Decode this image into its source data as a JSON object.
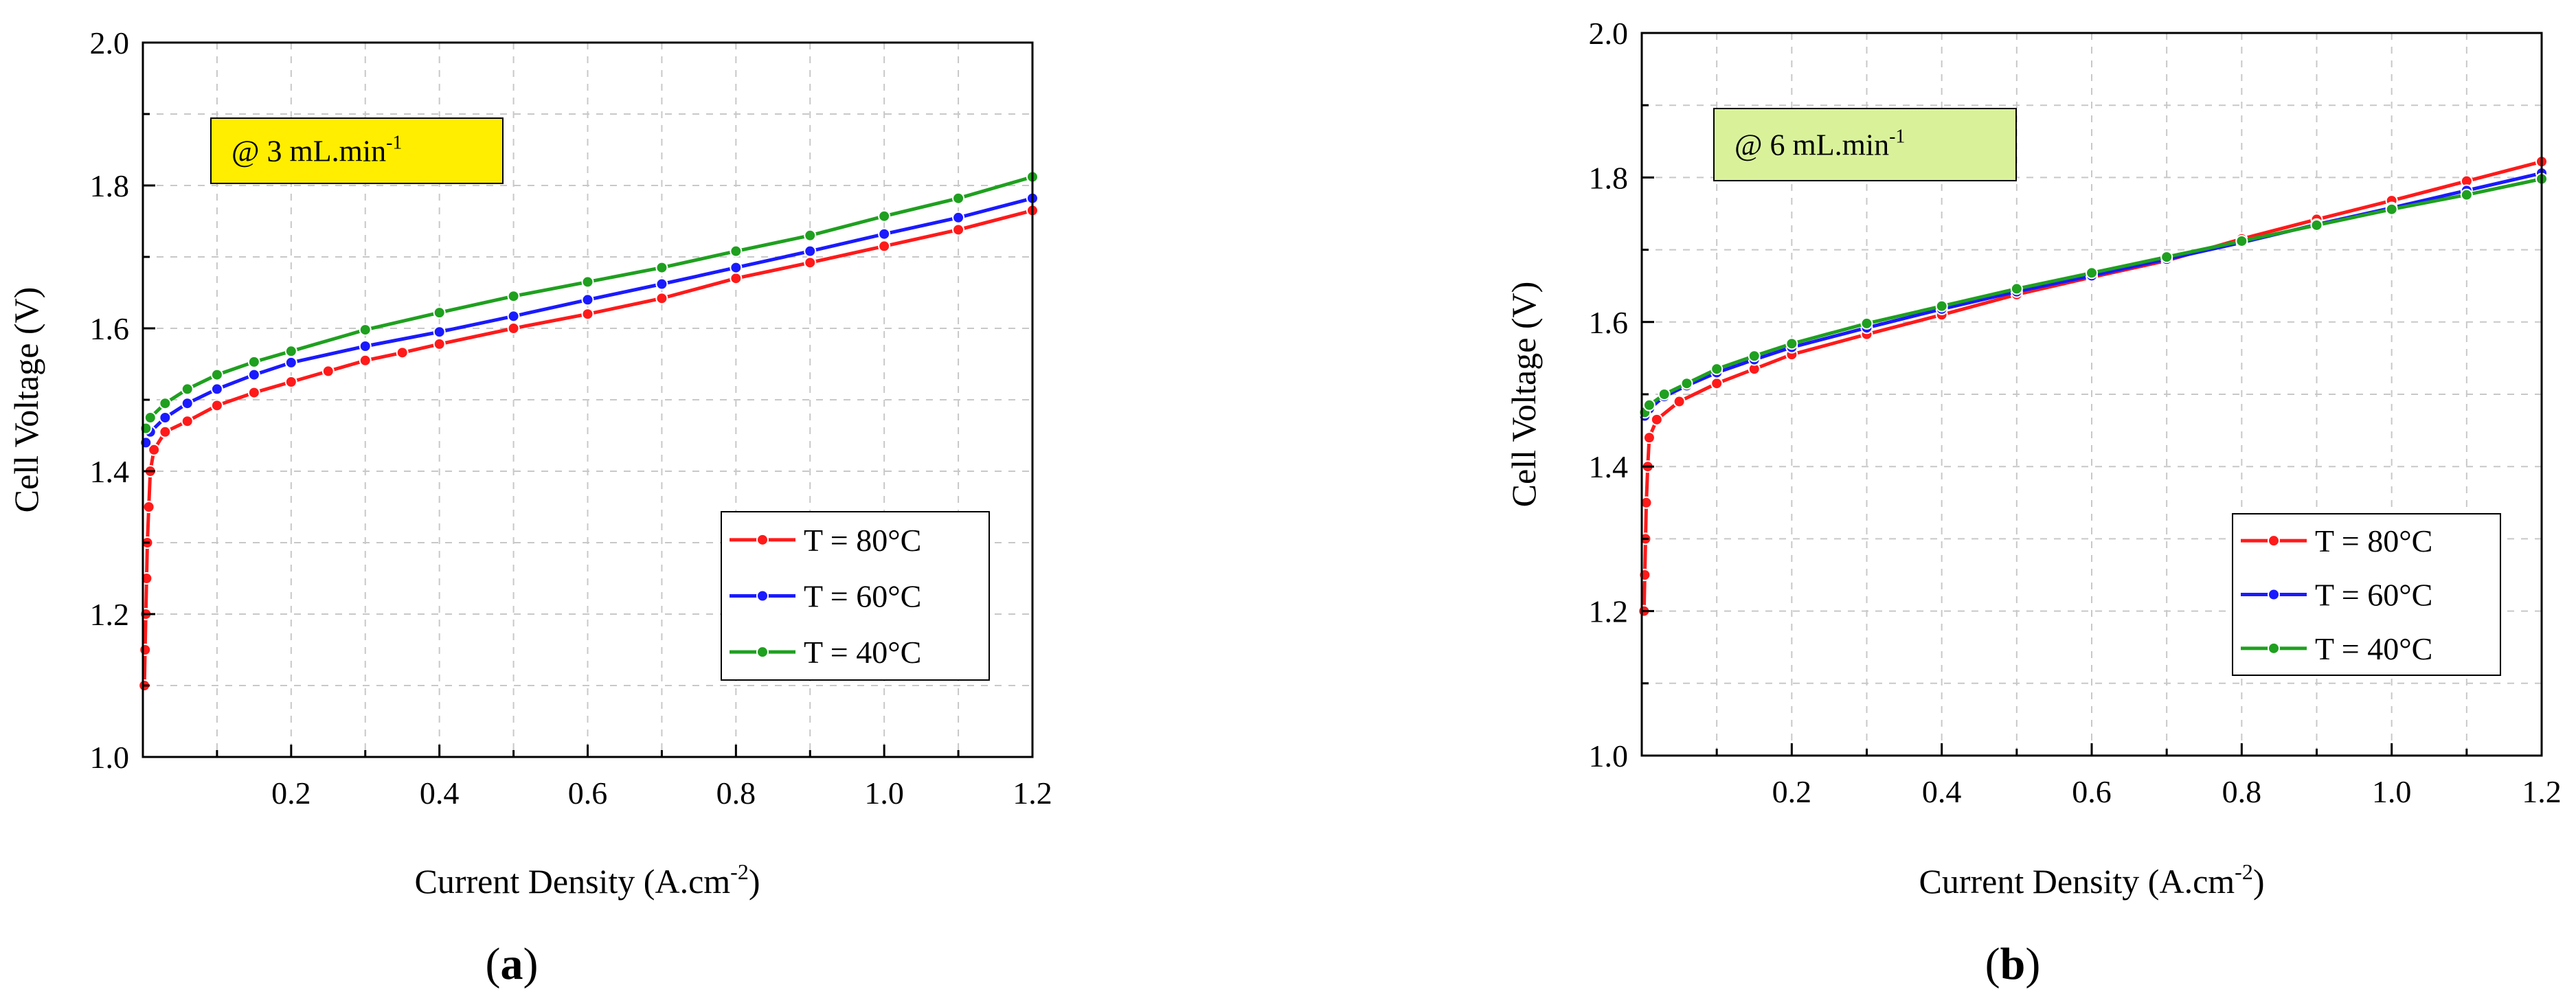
{
  "chart_data": [
    {
      "type": "line",
      "panel_label_open": "(",
      "panel_label_letter": "a",
      "panel_label_close": ")",
      "annotation": {
        "prefix": "@ 3 mL.min",
        "sup": "-1",
        "bg_color": "#ffee00"
      },
      "xlabel": {
        "text": "Current Density (A.cm",
        "sup": "-2",
        "close": ")"
      },
      "ylabel": "Cell Voltage (V)",
      "xlim": [
        0,
        1.2
      ],
      "ylim": [
        1.0,
        2.0
      ],
      "x_ticks": [
        "0.2",
        "0.4",
        "0.6",
        "0.8",
        "1.0",
        "1.2"
      ],
      "y_ticks": [
        "1.0",
        "1.2",
        "1.4",
        "1.6",
        "1.8",
        "2.0"
      ],
      "grid": true,
      "legend_position": "center-right",
      "series": [
        {
          "name": "T = 80°C",
          "color": "#ff1a1a",
          "points": [
            [
              0.002,
              1.1
            ],
            [
              0.003,
              1.15
            ],
            [
              0.004,
              1.2
            ],
            [
              0.005,
              1.25
            ],
            [
              0.006,
              1.3
            ],
            [
              0.008,
              1.35
            ],
            [
              0.01,
              1.4
            ],
            [
              0.015,
              1.43
            ],
            [
              0.03,
              1.455
            ],
            [
              0.06,
              1.47
            ],
            [
              0.1,
              1.492
            ],
            [
              0.15,
              1.51
            ],
            [
              0.2,
              1.525
            ],
            [
              0.25,
              1.54
            ],
            [
              0.3,
              1.555
            ],
            [
              0.35,
              1.566
            ],
            [
              0.4,
              1.578
            ],
            [
              0.5,
              1.6
            ],
            [
              0.6,
              1.62
            ],
            [
              0.7,
              1.642
            ],
            [
              0.8,
              1.67
            ],
            [
              0.9,
              1.692
            ],
            [
              1.0,
              1.715
            ],
            [
              1.1,
              1.738
            ],
            [
              1.2,
              1.765
            ]
          ]
        },
        {
          "name": "T = 60°C",
          "color": "#1a1aff",
          "points": [
            [
              0.004,
              1.44
            ],
            [
              0.01,
              1.455
            ],
            [
              0.03,
              1.475
            ],
            [
              0.06,
              1.495
            ],
            [
              0.1,
              1.515
            ],
            [
              0.15,
              1.535
            ],
            [
              0.2,
              1.552
            ],
            [
              0.3,
              1.575
            ],
            [
              0.4,
              1.595
            ],
            [
              0.5,
              1.617
            ],
            [
              0.6,
              1.64
            ],
            [
              0.7,
              1.662
            ],
            [
              0.8,
              1.685
            ],
            [
              0.9,
              1.708
            ],
            [
              1.0,
              1.732
            ],
            [
              1.1,
              1.755
            ],
            [
              1.2,
              1.782
            ]
          ]
        },
        {
          "name": "T = 40°C",
          "color": "#1fa01f",
          "points": [
            [
              0.004,
              1.46
            ],
            [
              0.01,
              1.475
            ],
            [
              0.03,
              1.495
            ],
            [
              0.06,
              1.515
            ],
            [
              0.1,
              1.535
            ],
            [
              0.15,
              1.553
            ],
            [
              0.2,
              1.568
            ],
            [
              0.3,
              1.598
            ],
            [
              0.4,
              1.622
            ],
            [
              0.5,
              1.645
            ],
            [
              0.6,
              1.665
            ],
            [
              0.7,
              1.685
            ],
            [
              0.8,
              1.708
            ],
            [
              0.9,
              1.73
            ],
            [
              1.0,
              1.757
            ],
            [
              1.1,
              1.782
            ],
            [
              1.2,
              1.812
            ]
          ]
        }
      ]
    },
    {
      "type": "line",
      "panel_label_open": "(",
      "panel_label_letter": "b",
      "panel_label_close": ")",
      "annotation": {
        "prefix": "@ 6 mL.min",
        "sup": "-1",
        "bg_color": "#d9f29a"
      },
      "xlabel": {
        "text": "Current Density (A.cm",
        "sup": "-2",
        "close": ")"
      },
      "ylabel": "Cell Voltage (V)",
      "xlim": [
        0,
        1.2
      ],
      "ylim": [
        1.0,
        2.0
      ],
      "x_ticks": [
        "0.2",
        "0.4",
        "0.6",
        "0.8",
        "1.0",
        "1.2"
      ],
      "y_ticks": [
        "1.0",
        "1.2",
        "1.4",
        "1.6",
        "1.8",
        "2.0"
      ],
      "grid": true,
      "legend_position": "center-right",
      "series": [
        {
          "name": "T = 80°C",
          "color": "#ff1a1a",
          "points": [
            [
              0.003,
              1.2
            ],
            [
              0.004,
              1.25
            ],
            [
              0.005,
              1.3
            ],
            [
              0.006,
              1.35
            ],
            [
              0.008,
              1.4
            ],
            [
              0.01,
              1.44
            ],
            [
              0.02,
              1.465
            ],
            [
              0.05,
              1.49
            ],
            [
              0.1,
              1.515
            ],
            [
              0.15,
              1.535
            ],
            [
              0.2,
              1.555
            ],
            [
              0.3,
              1.583
            ],
            [
              0.4,
              1.61
            ],
            [
              0.5,
              1.638
            ],
            [
              0.6,
              1.662
            ],
            [
              0.7,
              1.685
            ],
            [
              0.8,
              1.715
            ],
            [
              0.9,
              1.742
            ],
            [
              1.0,
              1.768
            ],
            [
              1.1,
              1.795
            ],
            [
              1.2,
              1.822
            ]
          ]
        },
        {
          "name": "T = 60°C",
          "color": "#1a1aff",
          "points": [
            [
              0.004,
              1.47
            ],
            [
              0.01,
              1.48
            ],
            [
              0.03,
              1.497
            ],
            [
              0.06,
              1.512
            ],
            [
              0.1,
              1.53
            ],
            [
              0.15,
              1.548
            ],
            [
              0.2,
              1.565
            ],
            [
              0.3,
              1.592
            ],
            [
              0.4,
              1.618
            ],
            [
              0.5,
              1.642
            ],
            [
              0.6,
              1.664
            ],
            [
              0.7,
              1.687
            ],
            [
              0.8,
              1.71
            ],
            [
              0.9,
              1.735
            ],
            [
              1.0,
              1.758
            ],
            [
              1.1,
              1.782
            ],
            [
              1.2,
              1.806
            ]
          ]
        },
        {
          "name": "T = 40°C",
          "color": "#1fa01f",
          "points": [
            [
              0.004,
              1.475
            ],
            [
              0.01,
              1.485
            ],
            [
              0.03,
              1.5
            ],
            [
              0.06,
              1.515
            ],
            [
              0.1,
              1.535
            ],
            [
              0.15,
              1.553
            ],
            [
              0.2,
              1.57
            ],
            [
              0.3,
              1.598
            ],
            [
              0.4,
              1.622
            ],
            [
              0.5,
              1.646
            ],
            [
              0.6,
              1.668
            ],
            [
              0.7,
              1.69
            ],
            [
              0.8,
              1.712
            ],
            [
              0.9,
              1.734
            ],
            [
              1.0,
              1.756
            ],
            [
              1.1,
              1.776
            ],
            [
              1.2,
              1.798
            ]
          ]
        }
      ]
    }
  ]
}
